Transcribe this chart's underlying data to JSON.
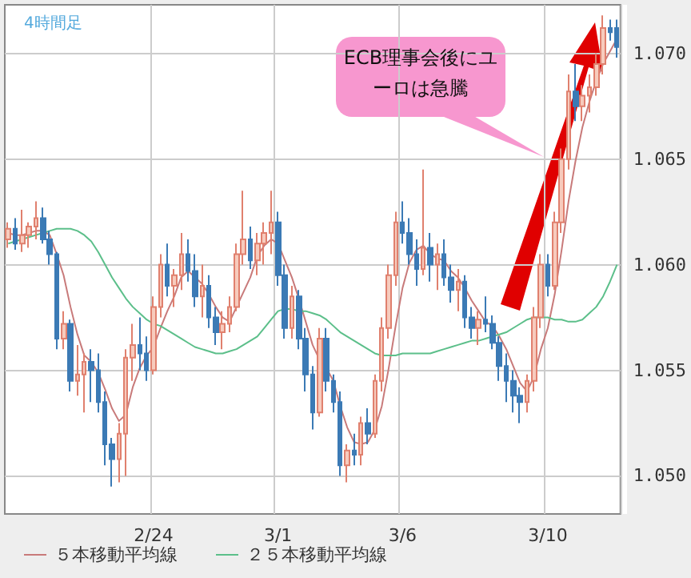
{
  "chart_data": {
    "type": "candlestick",
    "title": "4時間足",
    "categories": [
      null,
      null,
      null,
      null,
      null,
      null,
      null,
      null,
      null,
      null,
      null,
      null,
      null,
      null,
      null,
      null,
      null,
      null,
      null,
      null,
      null,
      "2/24",
      null,
      null,
      null,
      null,
      null,
      null,
      null,
      null,
      null,
      null,
      null,
      null,
      null,
      null,
      null,
      null,
      null,
      "3/1",
      null,
      null,
      null,
      null,
      null,
      null,
      null,
      null,
      null,
      null,
      null,
      null,
      null,
      null,
      null,
      null,
      null,
      "3/6",
      null,
      null,
      null,
      null,
      null,
      null,
      null,
      null,
      null,
      null,
      null,
      null,
      null,
      null,
      null,
      null,
      null,
      null,
      null,
      null,
      "3/10",
      null,
      null,
      null,
      null,
      null,
      null,
      null,
      null,
      null,
      null
    ],
    "ohlc": [
      [
        1.0612,
        1.062,
        1.0608,
        1.0617
      ],
      [
        1.0617,
        1.0622,
        1.0607,
        1.061
      ],
      [
        1.061,
        1.0626,
        1.0606,
        1.0614
      ],
      [
        1.0614,
        1.062,
        1.0608,
        1.0618
      ],
      [
        1.0618,
        1.063,
        1.0612,
        1.0622
      ],
      [
        1.0622,
        1.0627,
        1.061,
        1.0612
      ],
      [
        1.0612,
        1.0616,
        1.06,
        1.0605
      ],
      [
        1.0605,
        1.0606,
        1.056,
        1.0565
      ],
      [
        1.0565,
        1.0578,
        1.056,
        1.0572
      ],
      [
        1.0572,
        1.0574,
        1.054,
        1.0545
      ],
      [
        1.0545,
        1.0562,
        1.0538,
        1.0548
      ],
      [
        1.0548,
        1.0558,
        1.053,
        1.0554
      ],
      [
        1.0554,
        1.056,
        1.0535,
        1.055
      ],
      [
        1.055,
        1.0558,
        1.053,
        1.0535
      ],
      [
        1.0535,
        1.054,
        1.0505,
        1.0515
      ],
      [
        1.0515,
        1.0518,
        1.0495,
        1.0508
      ],
      [
        1.0508,
        1.0525,
        1.0497,
        1.052
      ],
      [
        1.052,
        1.056,
        1.05,
        1.0556
      ],
      [
        1.0556,
        1.0572,
        1.0545,
        1.0562
      ],
      [
        1.0562,
        1.0575,
        1.055,
        1.0558
      ],
      [
        1.0558,
        1.0566,
        1.0545,
        1.055
      ],
      [
        1.055,
        1.0585,
        1.0548,
        1.058
      ],
      [
        1.058,
        1.0605,
        1.0575,
        1.06
      ],
      [
        1.06,
        1.061,
        1.0585,
        1.059
      ],
      [
        1.059,
        1.0598,
        1.058,
        1.0595
      ],
      [
        1.0595,
        1.0615,
        1.0588,
        1.0605
      ],
      [
        1.0605,
        1.0612,
        1.0592,
        1.0597
      ],
      [
        1.0597,
        1.0605,
        1.058,
        1.0585
      ],
      [
        1.0585,
        1.06,
        1.0575,
        1.059
      ],
      [
        1.059,
        1.0595,
        1.057,
        1.0575
      ],
      [
        1.0575,
        1.058,
        1.0562,
        1.0568
      ],
      [
        1.0568,
        1.0578,
        1.056,
        1.0572
      ],
      [
        1.0572,
        1.0585,
        1.0568,
        1.058
      ],
      [
        1.058,
        1.061,
        1.0578,
        1.0605
      ],
      [
        1.0605,
        1.0635,
        1.06,
        1.0612
      ],
      [
        1.0612,
        1.0618,
        1.0598,
        1.0602
      ],
      [
        1.0602,
        1.0615,
        1.0595,
        1.061
      ],
      [
        1.061,
        1.062,
        1.06,
        1.0615
      ],
      [
        1.0615,
        1.0635,
        1.0605,
        1.062
      ],
      [
        1.062,
        1.0625,
        1.059,
        1.0595
      ],
      [
        1.0595,
        1.06,
        1.0565,
        1.057
      ],
      [
        1.057,
        1.059,
        1.0565,
        1.0585
      ],
      [
        1.0585,
        1.0588,
        1.056,
        1.0565
      ],
      [
        1.0565,
        1.057,
        1.054,
        1.0548
      ],
      [
        1.0548,
        1.0552,
        1.0522,
        1.053
      ],
      [
        1.053,
        1.057,
        1.0528,
        1.0565
      ],
      [
        1.0565,
        1.057,
        1.054,
        1.0545
      ],
      [
        1.0545,
        1.0548,
        1.053,
        1.0535
      ],
      [
        1.0535,
        1.054,
        1.05,
        1.0505
      ],
      [
        1.0505,
        1.0515,
        1.0497,
        1.0512
      ],
      [
        1.0512,
        1.052,
        1.0505,
        1.051
      ],
      [
        1.051,
        1.0528,
        1.0505,
        1.0525
      ],
      [
        1.0525,
        1.0532,
        1.0515,
        1.052
      ],
      [
        1.052,
        1.0548,
        1.0518,
        1.0545
      ],
      [
        1.0545,
        1.0575,
        1.054,
        1.057
      ],
      [
        1.057,
        1.06,
        1.0565,
        1.0595
      ],
      [
        1.0595,
        1.0625,
        1.059,
        1.062
      ],
      [
        1.062,
        1.063,
        1.061,
        1.0615
      ],
      [
        1.0615,
        1.0622,
        1.06,
        1.0605
      ],
      [
        1.0605,
        1.0612,
        1.059,
        1.0598
      ],
      [
        1.0598,
        1.0645,
        1.0595,
        1.0608
      ],
      [
        1.0608,
        1.0615,
        1.0592,
        1.06
      ],
      [
        1.06,
        1.061,
        1.0588,
        1.0605
      ],
      [
        1.0605,
        1.0612,
        1.059,
        1.0594
      ],
      [
        1.0594,
        1.06,
        1.0582,
        1.0588
      ],
      [
        1.0588,
        1.0598,
        1.0578,
        1.0592
      ],
      [
        1.0592,
        1.0595,
        1.057,
        1.0575
      ],
      [
        1.0575,
        1.058,
        1.0565,
        1.057
      ],
      [
        1.057,
        1.0578,
        1.0562,
        1.0574
      ],
      [
        1.0574,
        1.0585,
        1.0568,
        1.0572
      ],
      [
        1.0572,
        1.0576,
        1.056,
        1.0563
      ],
      [
        1.0563,
        1.0566,
        1.0545,
        1.0552
      ],
      [
        1.0552,
        1.0558,
        1.0535,
        1.0545
      ],
      [
        1.0545,
        1.055,
        1.053,
        1.0538
      ],
      [
        1.0538,
        1.0542,
        1.0525,
        1.0535
      ],
      [
        1.0535,
        1.0548,
        1.053,
        1.0545
      ],
      [
        1.0545,
        1.058,
        1.054,
        1.0575
      ],
      [
        1.0575,
        1.0605,
        1.057,
        1.06
      ],
      [
        1.06,
        1.0605,
        1.0585,
        1.059
      ],
      [
        1.059,
        1.0625,
        1.0588,
        1.062
      ],
      [
        1.062,
        1.0655,
        1.0615,
        1.065
      ],
      [
        1.065,
        1.069,
        1.0645,
        1.0682
      ],
      [
        1.0682,
        1.0695,
        1.0668,
        1.0675
      ],
      [
        1.0675,
        1.0685,
        1.0668,
        1.068
      ],
      [
        1.068,
        1.069,
        1.0672,
        1.0684
      ],
      [
        1.0684,
        1.07,
        1.068,
        1.0695
      ],
      [
        1.0695,
        1.0718,
        1.069,
        1.0712
      ],
      [
        1.0712,
        1.0716,
        1.0706,
        1.071
      ],
      [
        1.0712,
        1.0716,
        1.0698,
        1.0703
      ]
    ],
    "series": [
      {
        "name": "５本移動平均線",
        "type": "line",
        "color": "#c87a7a",
        "values": [
          1.0615,
          1.0614,
          1.0614,
          1.0615,
          1.0616,
          1.0616,
          1.0614,
          1.0605,
          1.0595,
          1.058,
          1.0567,
          1.0557,
          1.0554,
          1.0549,
          1.0541,
          1.0532,
          1.0526,
          1.0529,
          1.0542,
          1.0551,
          1.0557,
          1.0561,
          1.057,
          1.0578,
          1.0585,
          1.0594,
          1.0597,
          1.0594,
          1.0591,
          1.0586,
          1.058,
          1.0575,
          1.0573,
          1.058,
          1.0587,
          1.0594,
          1.0604,
          1.0609,
          1.0612,
          1.061,
          1.0602,
          1.0594,
          1.0584,
          1.0573,
          1.0562,
          1.0555,
          1.0551,
          1.0545,
          1.0533,
          1.0523,
          1.0516,
          1.0515,
          1.0516,
          1.0522,
          1.0533,
          1.0551,
          1.0571,
          1.0589,
          1.0601,
          1.0607,
          1.0609,
          1.0605,
          1.0603,
          1.0602,
          1.0597,
          1.0594,
          1.0589,
          1.0583,
          1.0578,
          1.0573,
          1.0571,
          1.0566,
          1.056,
          1.0552,
          1.0544,
          1.054,
          1.0547,
          1.056,
          1.057,
          1.0586,
          1.0607,
          1.063,
          1.0649,
          1.0665,
          1.0677,
          1.0687,
          1.0695,
          1.0701,
          1.0707
        ]
      },
      {
        "name": "２５本移動平均線",
        "type": "line",
        "color": "#5cbf8a",
        "values": [
          1.061,
          1.0611,
          1.0612,
          1.0613,
          1.0614,
          1.0615,
          1.0616,
          1.0617,
          1.0617,
          1.0617,
          1.0616,
          1.0614,
          1.0611,
          1.0606,
          1.06,
          1.0594,
          1.0589,
          1.0584,
          1.058,
          1.0577,
          1.0574,
          1.0572,
          1.0571,
          1.0569,
          1.0567,
          1.0565,
          1.0563,
          1.0561,
          1.056,
          1.0559,
          1.0558,
          1.0558,
          1.0559,
          1.056,
          1.0562,
          1.0564,
          1.0566,
          1.057,
          1.0574,
          1.0578,
          1.0579,
          1.0579,
          1.0578,
          1.0578,
          1.0577,
          1.0576,
          1.0574,
          1.0571,
          1.0568,
          1.0566,
          1.0564,
          1.0562,
          1.056,
          1.0558,
          1.0557,
          1.0557,
          1.0557,
          1.0558,
          1.0558,
          1.0558,
          1.0558,
          1.0558,
          1.0559,
          1.056,
          1.0561,
          1.0562,
          1.0563,
          1.0564,
          1.0564,
          1.0565,
          1.0566,
          1.0567,
          1.0568,
          1.057,
          1.0572,
          1.0574,
          1.0575,
          1.0575,
          1.0575,
          1.0574,
          1.0574,
          1.0573,
          1.0573,
          1.0574,
          1.0577,
          1.058,
          1.0585,
          1.0592,
          1.06
        ]
      }
    ],
    "ylim": [
      1.0482,
      1.0723
    ],
    "yticks": [
      {
        "value": 1.05,
        "label": "1.050"
      },
      {
        "value": 1.055,
        "label": "1.055"
      },
      {
        "value": 1.06,
        "label": "1.060"
      },
      {
        "value": 1.065,
        "label": "1.065"
      },
      {
        "value": 1.07,
        "label": "1.070"
      }
    ],
    "grid": true,
    "legend": "bottom",
    "annotations": [
      "ECB理事会後にユーロは急騰"
    ]
  }
}
